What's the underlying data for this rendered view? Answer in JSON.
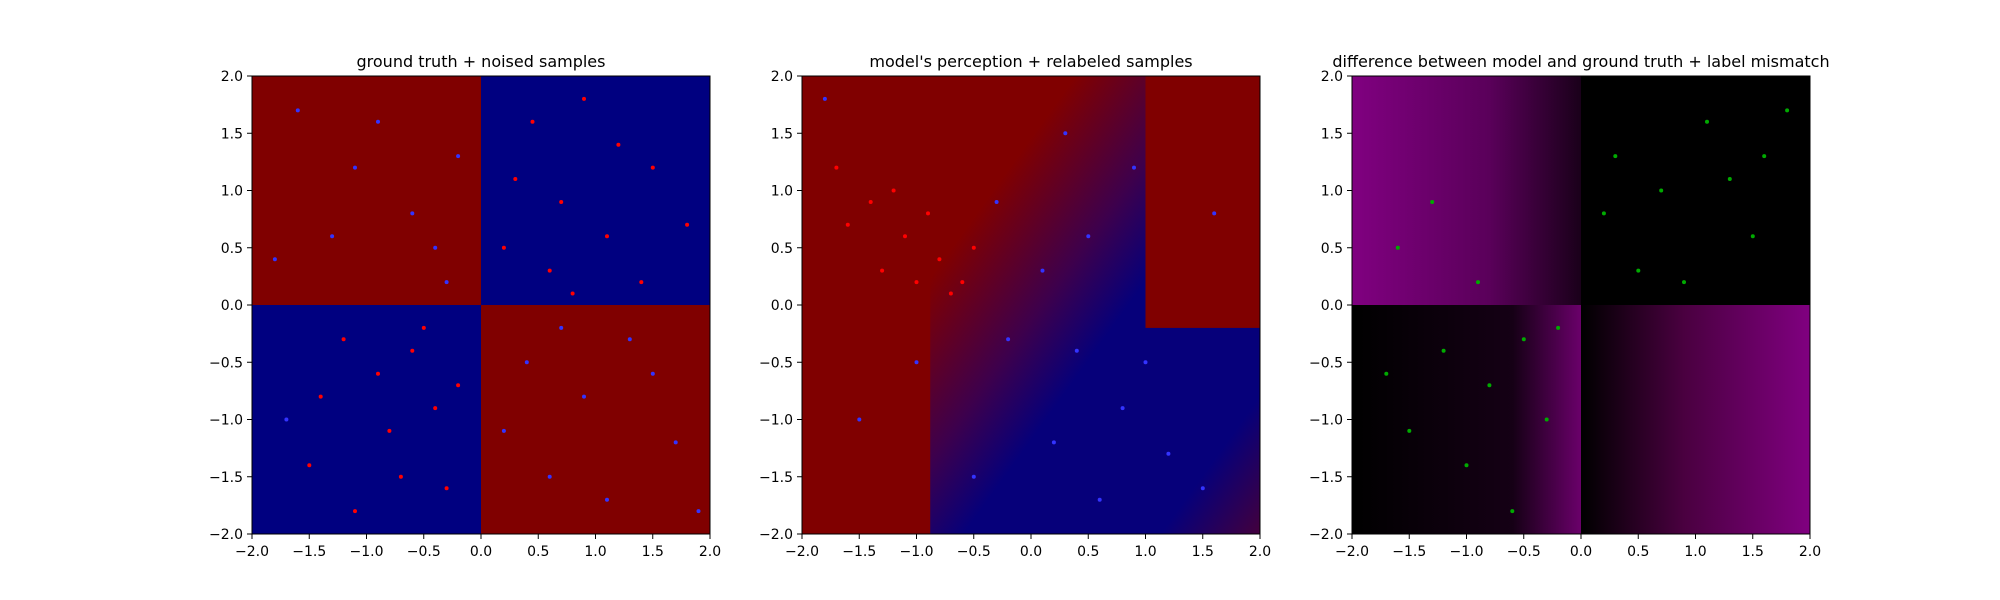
{
  "chart_data": [
    {
      "type": "scatter",
      "title": "ground truth + noised samples",
      "xlim": [
        -2.0,
        2.0
      ],
      "ylim": [
        -2.0,
        2.0
      ],
      "x_ticks": [
        "−2.0",
        "−1.5",
        "−1.0",
        "−0.5",
        "0.0",
        "0.5",
        "1.0",
        "1.5",
        "2.0"
      ],
      "y_ticks": [
        "−2.0",
        "−1.5",
        "−1.0",
        "−0.5",
        "0.0",
        "0.5",
        "1.0",
        "1.5",
        "2.0"
      ],
      "background": {
        "kind": "quadrants",
        "top_left": "#800000",
        "top_right": "#000080",
        "bottom_left": "#000080",
        "bottom_right": "#800000"
      },
      "series": [
        {
          "color": "#ff0000",
          "points": [
            [
              0.45,
              1.6
            ],
            [
              0.9,
              1.8
            ],
            [
              1.2,
              1.4
            ],
            [
              0.3,
              1.1
            ],
            [
              0.7,
              0.9
            ],
            [
              1.5,
              1.2
            ],
            [
              1.8,
              0.7
            ],
            [
              0.2,
              0.5
            ],
            [
              0.6,
              0.3
            ],
            [
              1.1,
              0.6
            ],
            [
              1.4,
              0.2
            ],
            [
              0.8,
              0.1
            ],
            [
              -0.6,
              -0.4
            ],
            [
              -0.9,
              -0.6
            ],
            [
              -1.2,
              -0.3
            ],
            [
              -0.4,
              -0.9
            ],
            [
              -0.8,
              -1.1
            ],
            [
              -1.5,
              -1.4
            ],
            [
              -0.3,
              -1.6
            ],
            [
              -1.1,
              -1.8
            ],
            [
              -0.5,
              -0.2
            ],
            [
              -0.2,
              -0.7
            ],
            [
              -1.4,
              -0.8
            ],
            [
              -0.7,
              -1.5
            ]
          ]
        },
        {
          "color": "#3333ff",
          "points": [
            [
              -1.6,
              1.7
            ],
            [
              -1.1,
              1.2
            ],
            [
              -0.6,
              0.8
            ],
            [
              -1.8,
              0.4
            ],
            [
              -0.3,
              0.2
            ],
            [
              -1.3,
              0.6
            ],
            [
              -0.9,
              1.6
            ],
            [
              -0.2,
              1.3
            ],
            [
              0.4,
              -0.5
            ],
            [
              0.9,
              -0.8
            ],
            [
              1.3,
              -0.3
            ],
            [
              1.7,
              -1.2
            ],
            [
              0.6,
              -1.5
            ],
            [
              1.1,
              -1.7
            ],
            [
              0.2,
              -1.1
            ],
            [
              1.5,
              -0.6
            ],
            [
              -1.7,
              -1.0
            ],
            [
              -0.4,
              0.5
            ],
            [
              0.7,
              -0.2
            ],
            [
              1.9,
              -1.8
            ]
          ]
        }
      ]
    },
    {
      "type": "scatter",
      "title": "model's perception + relabeled samples",
      "xlim": [
        -2.0,
        2.0
      ],
      "ylim": [
        -2.0,
        2.0
      ],
      "x_ticks": [
        "−2.0",
        "−1.5",
        "−1.0",
        "−0.5",
        "0.0",
        "0.5",
        "1.0",
        "1.5",
        "2.0"
      ],
      "y_ticks": [
        "−2.0",
        "−1.5",
        "−1.0",
        "−0.5",
        "0.0",
        "0.5",
        "1.0",
        "1.5",
        "2.0"
      ],
      "background": {
        "kind": "model-gradient",
        "red": "#800000",
        "blue": "#000080"
      },
      "series": [
        {
          "color": "#ff0000",
          "points": [
            [
              -1.7,
              1.2
            ],
            [
              -1.4,
              0.9
            ],
            [
              -1.1,
              0.6
            ],
            [
              -0.8,
              0.4
            ],
            [
              -0.6,
              0.2
            ],
            [
              -1.3,
              0.3
            ],
            [
              -0.9,
              0.8
            ],
            [
              -0.5,
              0.5
            ],
            [
              -1.6,
              0.7
            ],
            [
              -1.2,
              1.0
            ],
            [
              -0.7,
              0.1
            ],
            [
              -1.0,
              0.2
            ]
          ]
        },
        {
          "color": "#3333ff",
          "points": [
            [
              0.1,
              0.3
            ],
            [
              0.4,
              -0.4
            ],
            [
              0.8,
              -0.9
            ],
            [
              1.2,
              -1.3
            ],
            [
              0.6,
              -1.7
            ],
            [
              1.0,
              -0.5
            ],
            [
              0.2,
              -1.2
            ],
            [
              -0.2,
              -0.3
            ],
            [
              0.5,
              0.6
            ],
            [
              1.5,
              -1.6
            ],
            [
              -1.5,
              -1.0
            ],
            [
              -1.0,
              -0.5
            ],
            [
              -0.5,
              -1.5
            ],
            [
              0.9,
              1.2
            ],
            [
              1.6,
              0.8
            ],
            [
              -1.8,
              1.8
            ],
            [
              0.3,
              1.5
            ],
            [
              -0.3,
              0.9
            ]
          ]
        }
      ]
    },
    {
      "type": "scatter",
      "title": "difference between model and ground truth + label mismatch",
      "xlim": [
        -2.0,
        2.0
      ],
      "ylim": [
        -2.0,
        2.0
      ],
      "x_ticks": [
        "−2.0",
        "−1.5",
        "−1.0",
        "−0.5",
        "0.0",
        "0.5",
        "1.0",
        "1.5",
        "2.0"
      ],
      "y_ticks": [
        "−2.0",
        "−1.5",
        "−1.0",
        "−0.5",
        "0.0",
        "0.5",
        "1.0",
        "1.5",
        "2.0"
      ],
      "background": {
        "kind": "difference",
        "high": "#800080",
        "low": "#000000"
      },
      "series": [
        {
          "color": "#00aa00",
          "points": [
            [
              0.3,
              1.3
            ],
            [
              0.7,
              1.0
            ],
            [
              1.1,
              1.6
            ],
            [
              1.5,
              0.6
            ],
            [
              0.5,
              0.3
            ],
            [
              0.9,
              0.2
            ],
            [
              1.3,
              1.1
            ],
            [
              1.8,
              1.7
            ],
            [
              -1.2,
              -0.4
            ],
            [
              -0.8,
              -0.7
            ],
            [
              -1.5,
              -1.1
            ],
            [
              -0.5,
              -0.3
            ],
            [
              -0.3,
              -1.0
            ],
            [
              -1.0,
              -1.4
            ],
            [
              -0.6,
              -1.8
            ],
            [
              -1.7,
              -0.6
            ],
            [
              -1.3,
              0.9
            ],
            [
              -1.6,
              0.5
            ],
            [
              -0.9,
              0.2
            ],
            [
              -0.2,
              -0.2
            ],
            [
              0.2,
              0.8
            ],
            [
              1.6,
              1.3
            ]
          ]
        }
      ]
    }
  ]
}
